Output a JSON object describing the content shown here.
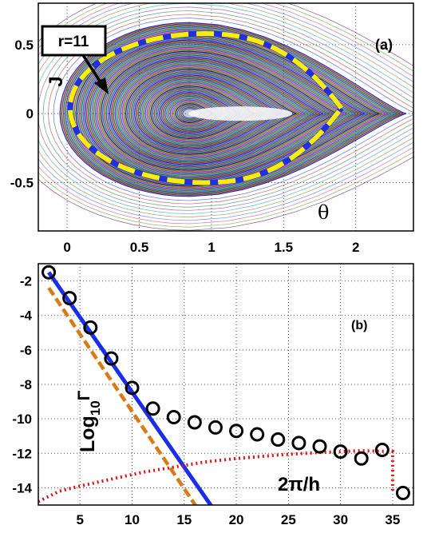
{
  "chart_data": [
    {
      "type": "scatter",
      "panel_label": "(a)",
      "annotation": "r=11",
      "xlabel": "θ",
      "ylabel": "J",
      "xlim": [
        -0.2,
        2.4
      ],
      "ylim": [
        -0.85,
        0.8
      ],
      "x_ticks": [
        "0",
        "0.5",
        "1",
        "1.5",
        "2"
      ],
      "x_tick_values": [
        0,
        0.5,
        1,
        1.5,
        2
      ],
      "y_ticks": [
        "0.5",
        "0",
        "-0.5"
      ],
      "y_tick_values": [
        0.5,
        0,
        -0.5
      ],
      "island": {
        "center": [
          0.85,
          0.0
        ],
        "left_edge": -0.05,
        "tip": 2.35,
        "top": 0.66,
        "bottom": -0.6
      },
      "highlight_orbit": {
        "left": 0.02,
        "right": 1.9,
        "top": 0.58,
        "bottom": -0.5,
        "color": "#ffee00"
      },
      "grid": true
    },
    {
      "type": "line",
      "panel_label": "(b)",
      "ylabel": "Log10Γ",
      "ylabel_main": "Log",
      "ylabel_sub": "10",
      "ylabel_symbol": "Γ",
      "curve_label": "2π/h",
      "xlim": [
        1,
        37
      ],
      "ylim": [
        -15,
        -1
      ],
      "x_ticks": [
        "5",
        "10",
        "15",
        "20",
        "25",
        "30",
        "35"
      ],
      "x_tick_values": [
        5,
        10,
        15,
        20,
        25,
        30,
        35
      ],
      "y_ticks": [
        "-2",
        "-4",
        "-6",
        "-8",
        "-10",
        "-12",
        "-14"
      ],
      "y_tick_values": [
        -2,
        -4,
        -6,
        -8,
        -10,
        -12,
        -14
      ],
      "grid": true,
      "series": [
        {
          "style": "circles",
          "color": "#000000",
          "x": [
            2,
            4,
            6,
            8,
            10,
            12,
            14,
            16,
            18,
            20,
            22,
            24,
            26,
            28,
            30,
            32,
            34,
            36
          ],
          "y": [
            -1.5,
            -3.0,
            -4.7,
            -6.5,
            -8.2,
            -9.4,
            -9.9,
            -10.2,
            -10.5,
            -10.7,
            -10.9,
            -11.2,
            -11.4,
            -11.6,
            -11.9,
            -12.3,
            -11.8,
            -14.3
          ]
        },
        {
          "style": "solid",
          "color": "#1a2ee8",
          "x": [
            2,
            18
          ],
          "y": [
            -1.5,
            -15.4
          ]
        },
        {
          "style": "dashed",
          "color": "#d97a16",
          "x": [
            2,
            16.5
          ],
          "y": [
            -2.4,
            -15.4
          ]
        },
        {
          "style": "dotted",
          "color": "#e01010",
          "x": [
            1,
            3,
            5,
            8,
            11,
            14,
            17,
            20,
            24,
            28,
            32,
            35,
            35,
            35
          ],
          "y": [
            -14.8,
            -14.2,
            -13.9,
            -13.5,
            -13.1,
            -12.8,
            -12.5,
            -12.3,
            -12.1,
            -11.95,
            -11.85,
            -11.9,
            -13.0,
            -14.3
          ]
        }
      ]
    }
  ]
}
